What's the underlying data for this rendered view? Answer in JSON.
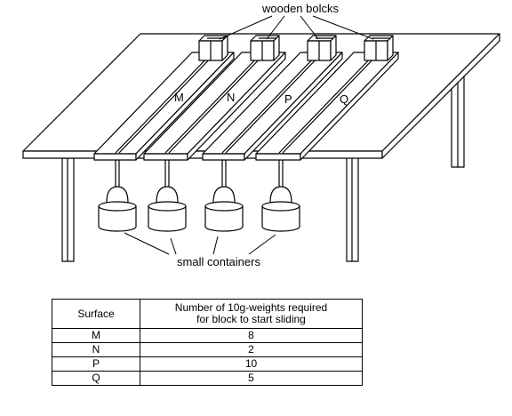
{
  "labels": {
    "blocks": "wooden bolcks",
    "containers": "small containers"
  },
  "surfaces": [
    "M",
    "N",
    "P",
    "Q"
  ],
  "table": {
    "headers": [
      "Surface",
      "Number of 10g-weights required\nfor block to start sliding"
    ],
    "rows": [
      {
        "surface": "M",
        "weights": "8"
      },
      {
        "surface": "N",
        "weights": "2"
      },
      {
        "surface": "P",
        "weights": "10"
      },
      {
        "surface": "Q",
        "weights": "5"
      }
    ]
  }
}
